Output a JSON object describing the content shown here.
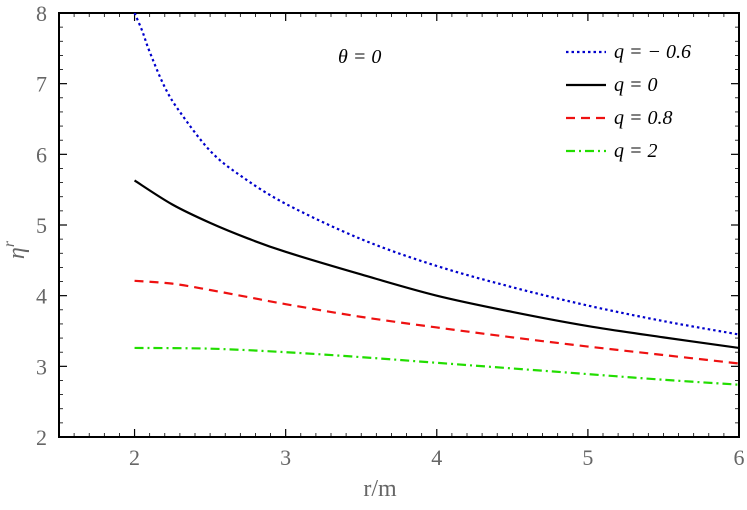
{
  "chart_data": {
    "type": "line",
    "xlabel": "r/m",
    "ylabel": "η",
    "ylabel_sup": "r",
    "xlim": [
      1.5,
      6
    ],
    "ylim": [
      2,
      8
    ],
    "xticks": [
      "2",
      "3",
      "4",
      "5",
      "6"
    ],
    "yticks": [
      "2",
      "3",
      "4",
      "5",
      "6",
      "7",
      "8"
    ],
    "annotation": "θ = 0",
    "legend_position": "top-right",
    "grid": false,
    "series": [
      {
        "name": "q = − 0.6",
        "color": "#0000cc",
        "style": "dotted",
        "x": [
          2.0,
          2.05,
          2.1,
          2.2,
          2.3,
          2.5,
          2.7,
          3.0,
          3.5,
          4.0,
          4.5,
          5.0,
          5.5,
          6.0
        ],
        "y": [
          8.0,
          7.75,
          7.45,
          6.95,
          6.6,
          6.05,
          5.7,
          5.3,
          4.8,
          4.42,
          4.12,
          3.86,
          3.64,
          3.45
        ]
      },
      {
        "name": "q = 0",
        "color": "#000000",
        "style": "solid",
        "x": [
          2.0,
          2.25,
          2.5,
          2.75,
          3.0,
          3.5,
          4.0,
          4.5,
          5.0,
          5.5,
          6.0
        ],
        "y": [
          5.63,
          5.29,
          5.03,
          4.81,
          4.62,
          4.3,
          4.0,
          3.77,
          3.57,
          3.41,
          3.26
        ]
      },
      {
        "name": "q = 0.8",
        "color": "#ee1111",
        "style": "dashed",
        "x": [
          2.0,
          2.25,
          2.5,
          2.75,
          3.0,
          3.5,
          4.0,
          4.5,
          5.0,
          5.5,
          6.0
        ],
        "y": [
          4.21,
          4.17,
          4.08,
          3.98,
          3.88,
          3.7,
          3.55,
          3.41,
          3.28,
          3.16,
          3.04
        ]
      },
      {
        "name": "q = 2",
        "color": "#22dd00",
        "style": "dashdot",
        "x": [
          2.0,
          2.5,
          3.0,
          3.5,
          4.0,
          4.5,
          5.0,
          5.5,
          6.0
        ],
        "y": [
          3.26,
          3.25,
          3.2,
          3.13,
          3.05,
          2.97,
          2.89,
          2.81,
          2.74
        ]
      }
    ]
  }
}
